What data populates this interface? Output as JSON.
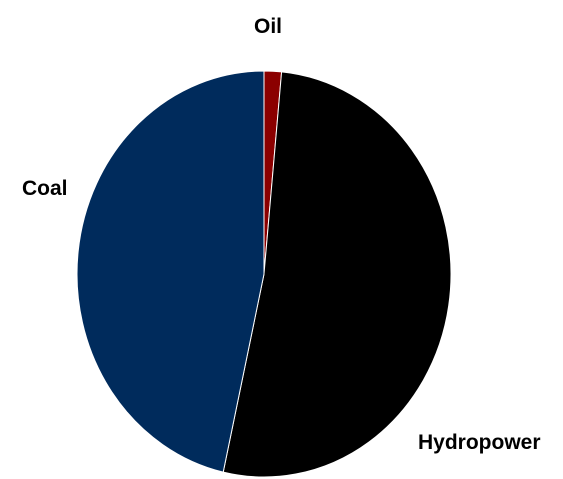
{
  "chart_data": {
    "type": "pie",
    "title": "",
    "categories": [
      "Oil",
      "Hydropower",
      "Coal"
    ],
    "values": [
      1.5,
      52,
      46.5
    ],
    "colors": [
      "#8b0000",
      "#000000",
      "#002b5c"
    ]
  }
}
